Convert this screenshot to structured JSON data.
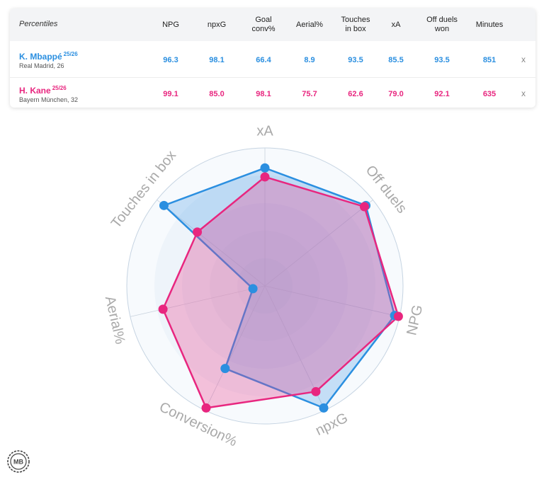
{
  "table": {
    "percentiles_label": "Percentiles",
    "columns": [
      "NPG",
      "npxG",
      "Goal\nconv%",
      "Aerial%",
      "Touches\nin box",
      "xA",
      "Off duels\nwon",
      "Minutes"
    ],
    "players": [
      {
        "name": "K. Mbappé",
        "season": "25/26",
        "team": "Real Madrid, 26",
        "values": [
          "96.3",
          "98.1",
          "66.4",
          "8.9",
          "93.5",
          "85.5",
          "93.5",
          "851"
        ],
        "remove_label": "x",
        "color": "#2b8fe0"
      },
      {
        "name": "H. Kane",
        "season": "25/26",
        "team": "Bayern München, 32",
        "values": [
          "99.1",
          "85.0",
          "98.1",
          "75.7",
          "62.6",
          "79.0",
          "92.1",
          "635"
        ],
        "remove_label": "x",
        "color": "#e8267f"
      }
    ]
  },
  "logo_text": "MB",
  "chart_data": {
    "type": "radar",
    "axes": [
      "xA",
      "Off duels",
      "NPG",
      "npxG",
      "Conversion%",
      "Aerial%",
      "Touches in box"
    ],
    "range": [
      0,
      100
    ],
    "series": [
      {
        "name": "K. Mbappé",
        "values": [
          85.5,
          93.5,
          96.3,
          98.1,
          66.4,
          8.9,
          93.5
        ],
        "color": "#2b8fe0"
      },
      {
        "name": "H. Kane",
        "values": [
          79.0,
          92.1,
          99.1,
          85.0,
          98.1,
          75.7,
          62.6
        ],
        "color": "#e8267f"
      }
    ]
  }
}
